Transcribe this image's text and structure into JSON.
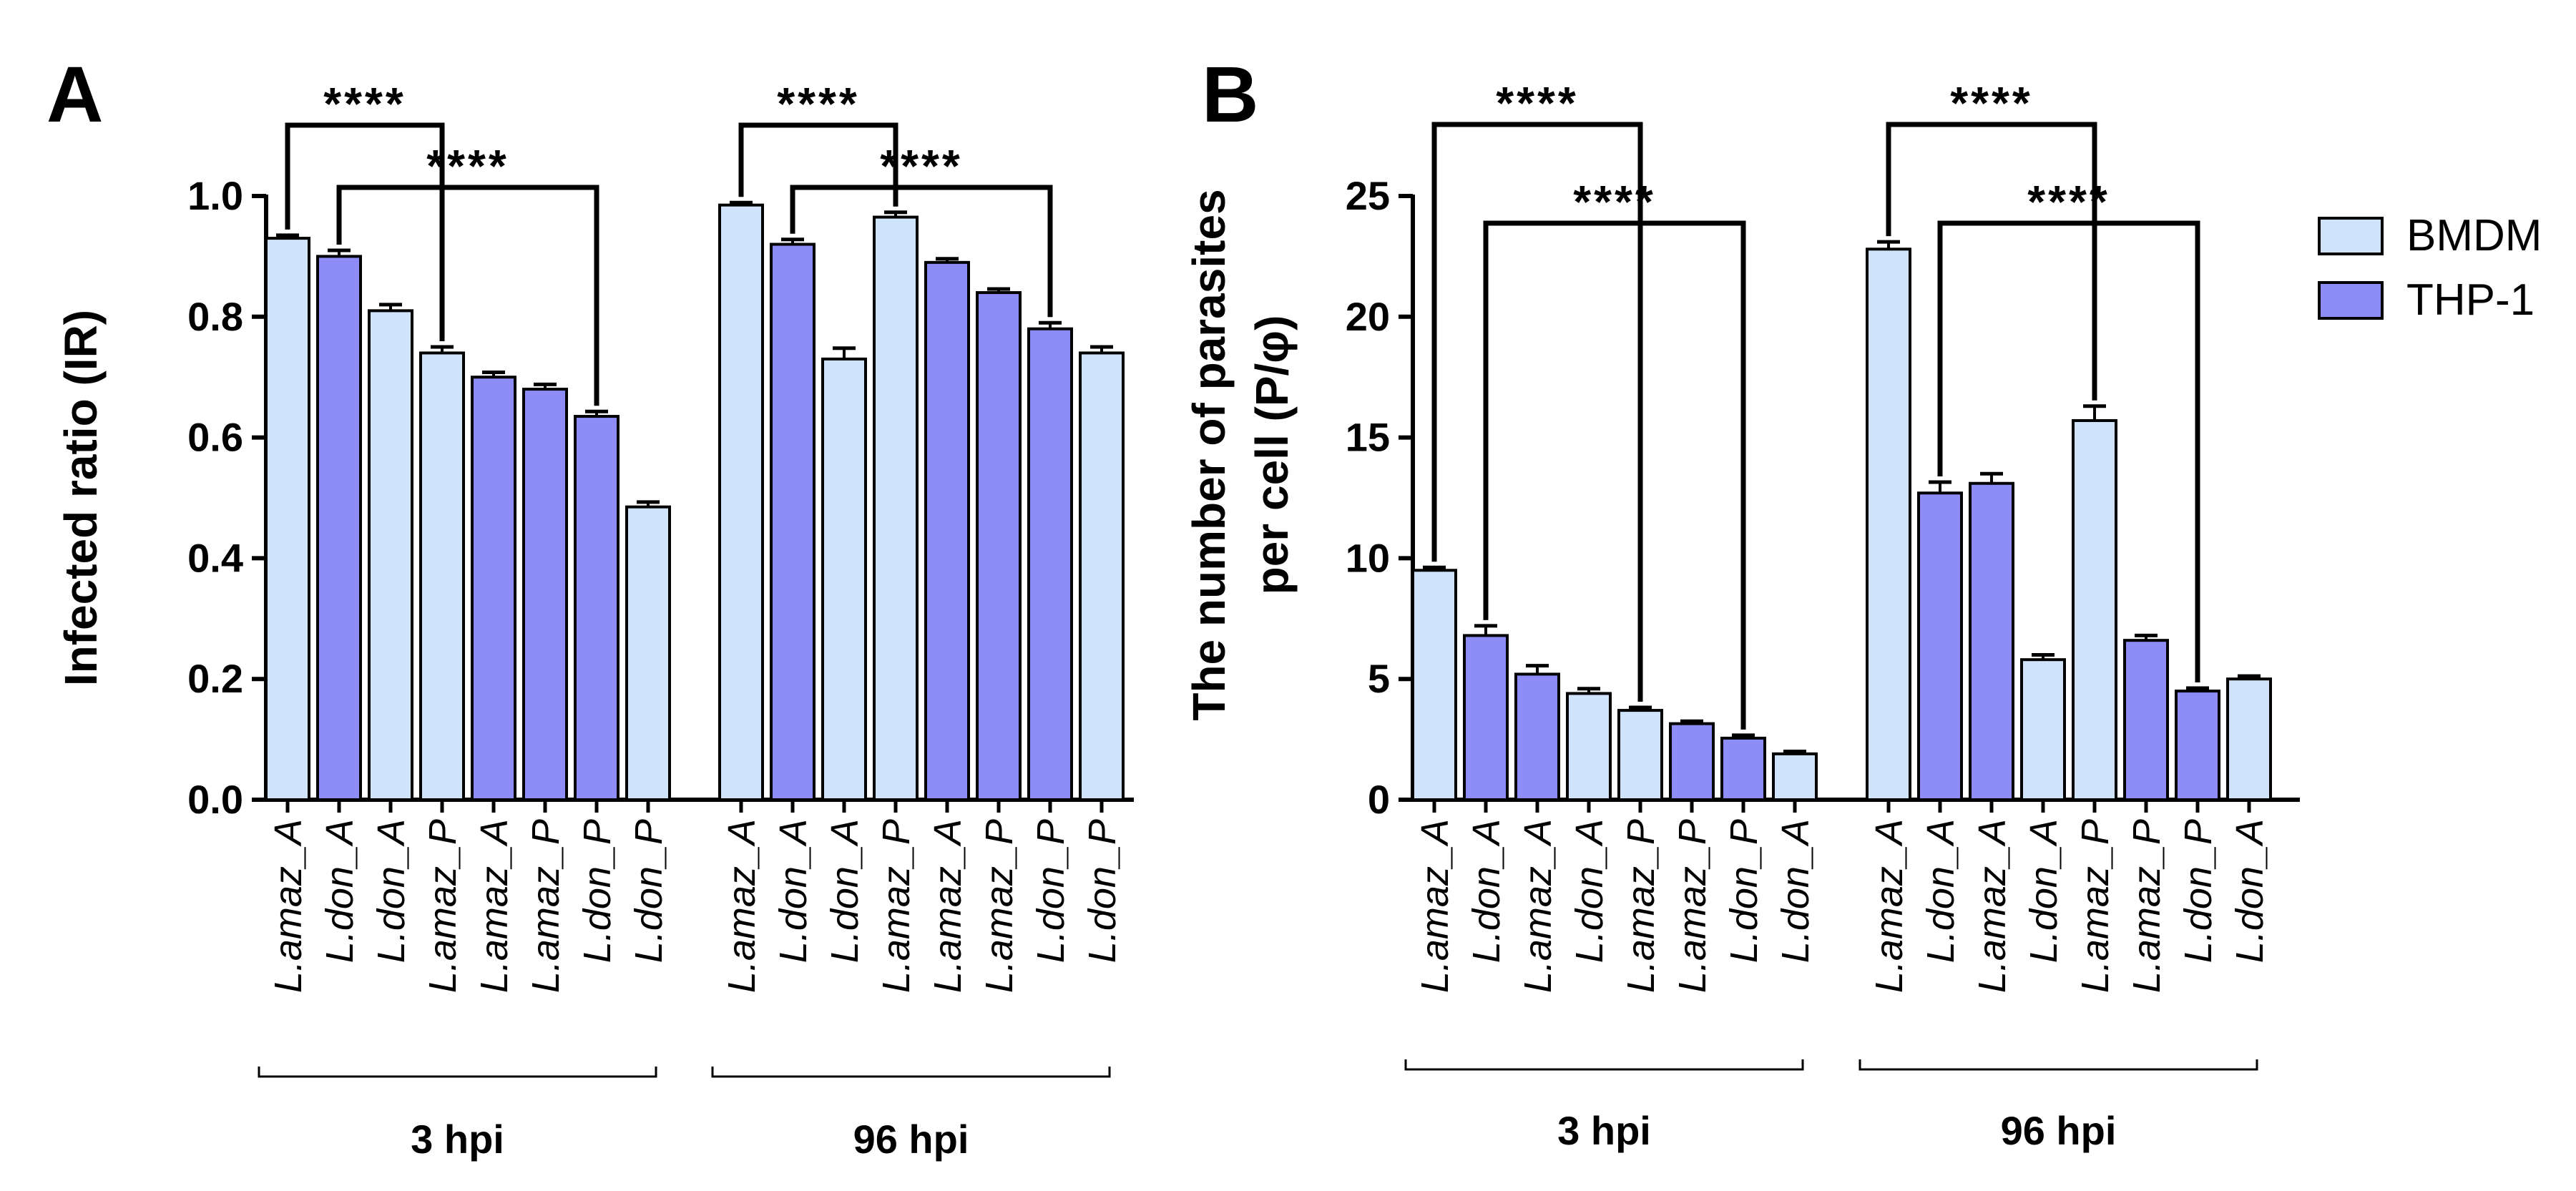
{
  "colors": {
    "BMDM": "#cfe4fb",
    "THP-1": "#8e8cf7",
    "axis": "#000000"
  },
  "legend": {
    "items": [
      {
        "label": "BMDM",
        "color": "#cfe4fb"
      },
      {
        "label": "THP-1",
        "color": "#8e8cf7"
      }
    ]
  },
  "chart_data": [
    {
      "panel": "A",
      "type": "bar",
      "ylabel": "Infected ratio (IR)",
      "ylim": [
        0,
        1.0
      ],
      "yticks": [
        0.0,
        0.2,
        0.4,
        0.6,
        0.8,
        1.0
      ],
      "ytick_labels": [
        "0.0",
        "0.2",
        "0.4",
        "0.6",
        "0.8",
        "1.0"
      ],
      "groups": [
        {
          "label": "3 hpi",
          "bars": [
            {
              "category": "L.amaz_A",
              "series": "BMDM",
              "value": 0.93,
              "error": 0.005
            },
            {
              "category": "L.don_A",
              "series": "THP-1",
              "value": 0.9,
              "error": 0.01
            },
            {
              "category": "L.don_A",
              "series": "BMDM",
              "value": 0.81,
              "error": 0.01
            },
            {
              "category": "L.amaz_P",
              "series": "BMDM",
              "value": 0.74,
              "error": 0.01
            },
            {
              "category": "L.amaz_A",
              "series": "THP-1",
              "value": 0.7,
              "error": 0.008
            },
            {
              "category": "L.amaz_P",
              "series": "THP-1",
              "value": 0.68,
              "error": 0.008
            },
            {
              "category": "L.don_P",
              "series": "THP-1",
              "value": 0.635,
              "error": 0.008
            },
            {
              "category": "L.don_P",
              "series": "BMDM",
              "value": 0.485,
              "error": 0.008
            }
          ]
        },
        {
          "label": "96 hpi",
          "bars": [
            {
              "category": "L.amaz_A",
              "series": "BMDM",
              "value": 0.985,
              "error": 0.004
            },
            {
              "category": "L.don_A",
              "series": "THP-1",
              "value": 0.92,
              "error": 0.008
            },
            {
              "category": "L.don_A",
              "series": "BMDM",
              "value": 0.73,
              "error": 0.018
            },
            {
              "category": "L.amaz_P",
              "series": "BMDM",
              "value": 0.965,
              "error": 0.008
            },
            {
              "category": "L.amaz_A",
              "series": "THP-1",
              "value": 0.89,
              "error": 0.006
            },
            {
              "category": "L.amaz_P",
              "series": "THP-1",
              "value": 0.84,
              "error": 0.006
            },
            {
              "category": "L.don_P",
              "series": "THP-1",
              "value": 0.78,
              "error": 0.01
            },
            {
              "category": "L.don_P",
              "series": "BMDM",
              "value": 0.74,
              "error": 0.01
            }
          ]
        }
      ],
      "significance": [
        {
          "group": 0,
          "from": 0,
          "to": 3,
          "label": "****"
        },
        {
          "group": 0,
          "from": 1,
          "to": 6,
          "label": "****"
        },
        {
          "group": 1,
          "from": 0,
          "to": 3,
          "label": "****"
        },
        {
          "group": 1,
          "from": 1,
          "to": 6,
          "label": "****"
        }
      ]
    },
    {
      "panel": "B",
      "type": "bar",
      "ylabel_lines": [
        "The number of parasites",
        "per cell (P/φ)"
      ],
      "ylim": [
        0,
        25
      ],
      "yticks": [
        0,
        5,
        10,
        15,
        20,
        25
      ],
      "ytick_labels": [
        "0",
        "5",
        "10",
        "15",
        "20",
        "25"
      ],
      "groups": [
        {
          "label": "3 hpi",
          "bars": [
            {
              "category": "L.amaz_A",
              "series": "BMDM",
              "value": 9.5,
              "error": 0.12
            },
            {
              "category": "L.don_A",
              "series": "THP-1",
              "value": 6.8,
              "error": 0.4
            },
            {
              "category": "L.amaz_A",
              "series": "THP-1",
              "value": 5.2,
              "error": 0.35
            },
            {
              "category": "L.don_A",
              "series": "BMDM",
              "value": 4.4,
              "error": 0.2
            },
            {
              "category": "L.amaz_P",
              "series": "BMDM",
              "value": 3.7,
              "error": 0.12
            },
            {
              "category": "L.amaz_P",
              "series": "THP-1",
              "value": 3.15,
              "error": 0.1
            },
            {
              "category": "L.don_P",
              "series": "THP-1",
              "value": 2.55,
              "error": 0.12
            },
            {
              "category": "L.don_A",
              "series": "BMDM",
              "value": 1.9,
              "error": 0.1
            }
          ]
        },
        {
          "label": "96 hpi",
          "bars": [
            {
              "category": "L.amaz_A",
              "series": "BMDM",
              "value": 22.8,
              "error": 0.3
            },
            {
              "category": "L.don_A",
              "series": "THP-1",
              "value": 12.7,
              "error": 0.45
            },
            {
              "category": "L.amaz_A",
              "series": "THP-1",
              "value": 13.1,
              "error": 0.4
            },
            {
              "category": "L.don_A",
              "series": "BMDM",
              "value": 5.8,
              "error": 0.2
            },
            {
              "category": "L.amaz_P",
              "series": "BMDM",
              "value": 15.7,
              "error": 0.6
            },
            {
              "category": "L.amaz_P",
              "series": "THP-1",
              "value": 6.6,
              "error": 0.2
            },
            {
              "category": "L.don_P",
              "series": "THP-1",
              "value": 4.5,
              "error": 0.12
            },
            {
              "category": "L.don_A",
              "series": "BMDM",
              "value": 5.0,
              "error": 0.12
            }
          ]
        }
      ],
      "significance": [
        {
          "group": 0,
          "from": 0,
          "to": 4,
          "label": "****"
        },
        {
          "group": 0,
          "from": 1,
          "to": 6,
          "label": "****"
        },
        {
          "group": 1,
          "from": 0,
          "to": 4,
          "label": "****"
        },
        {
          "group": 1,
          "from": 1,
          "to": 6,
          "label": "****"
        }
      ]
    }
  ]
}
